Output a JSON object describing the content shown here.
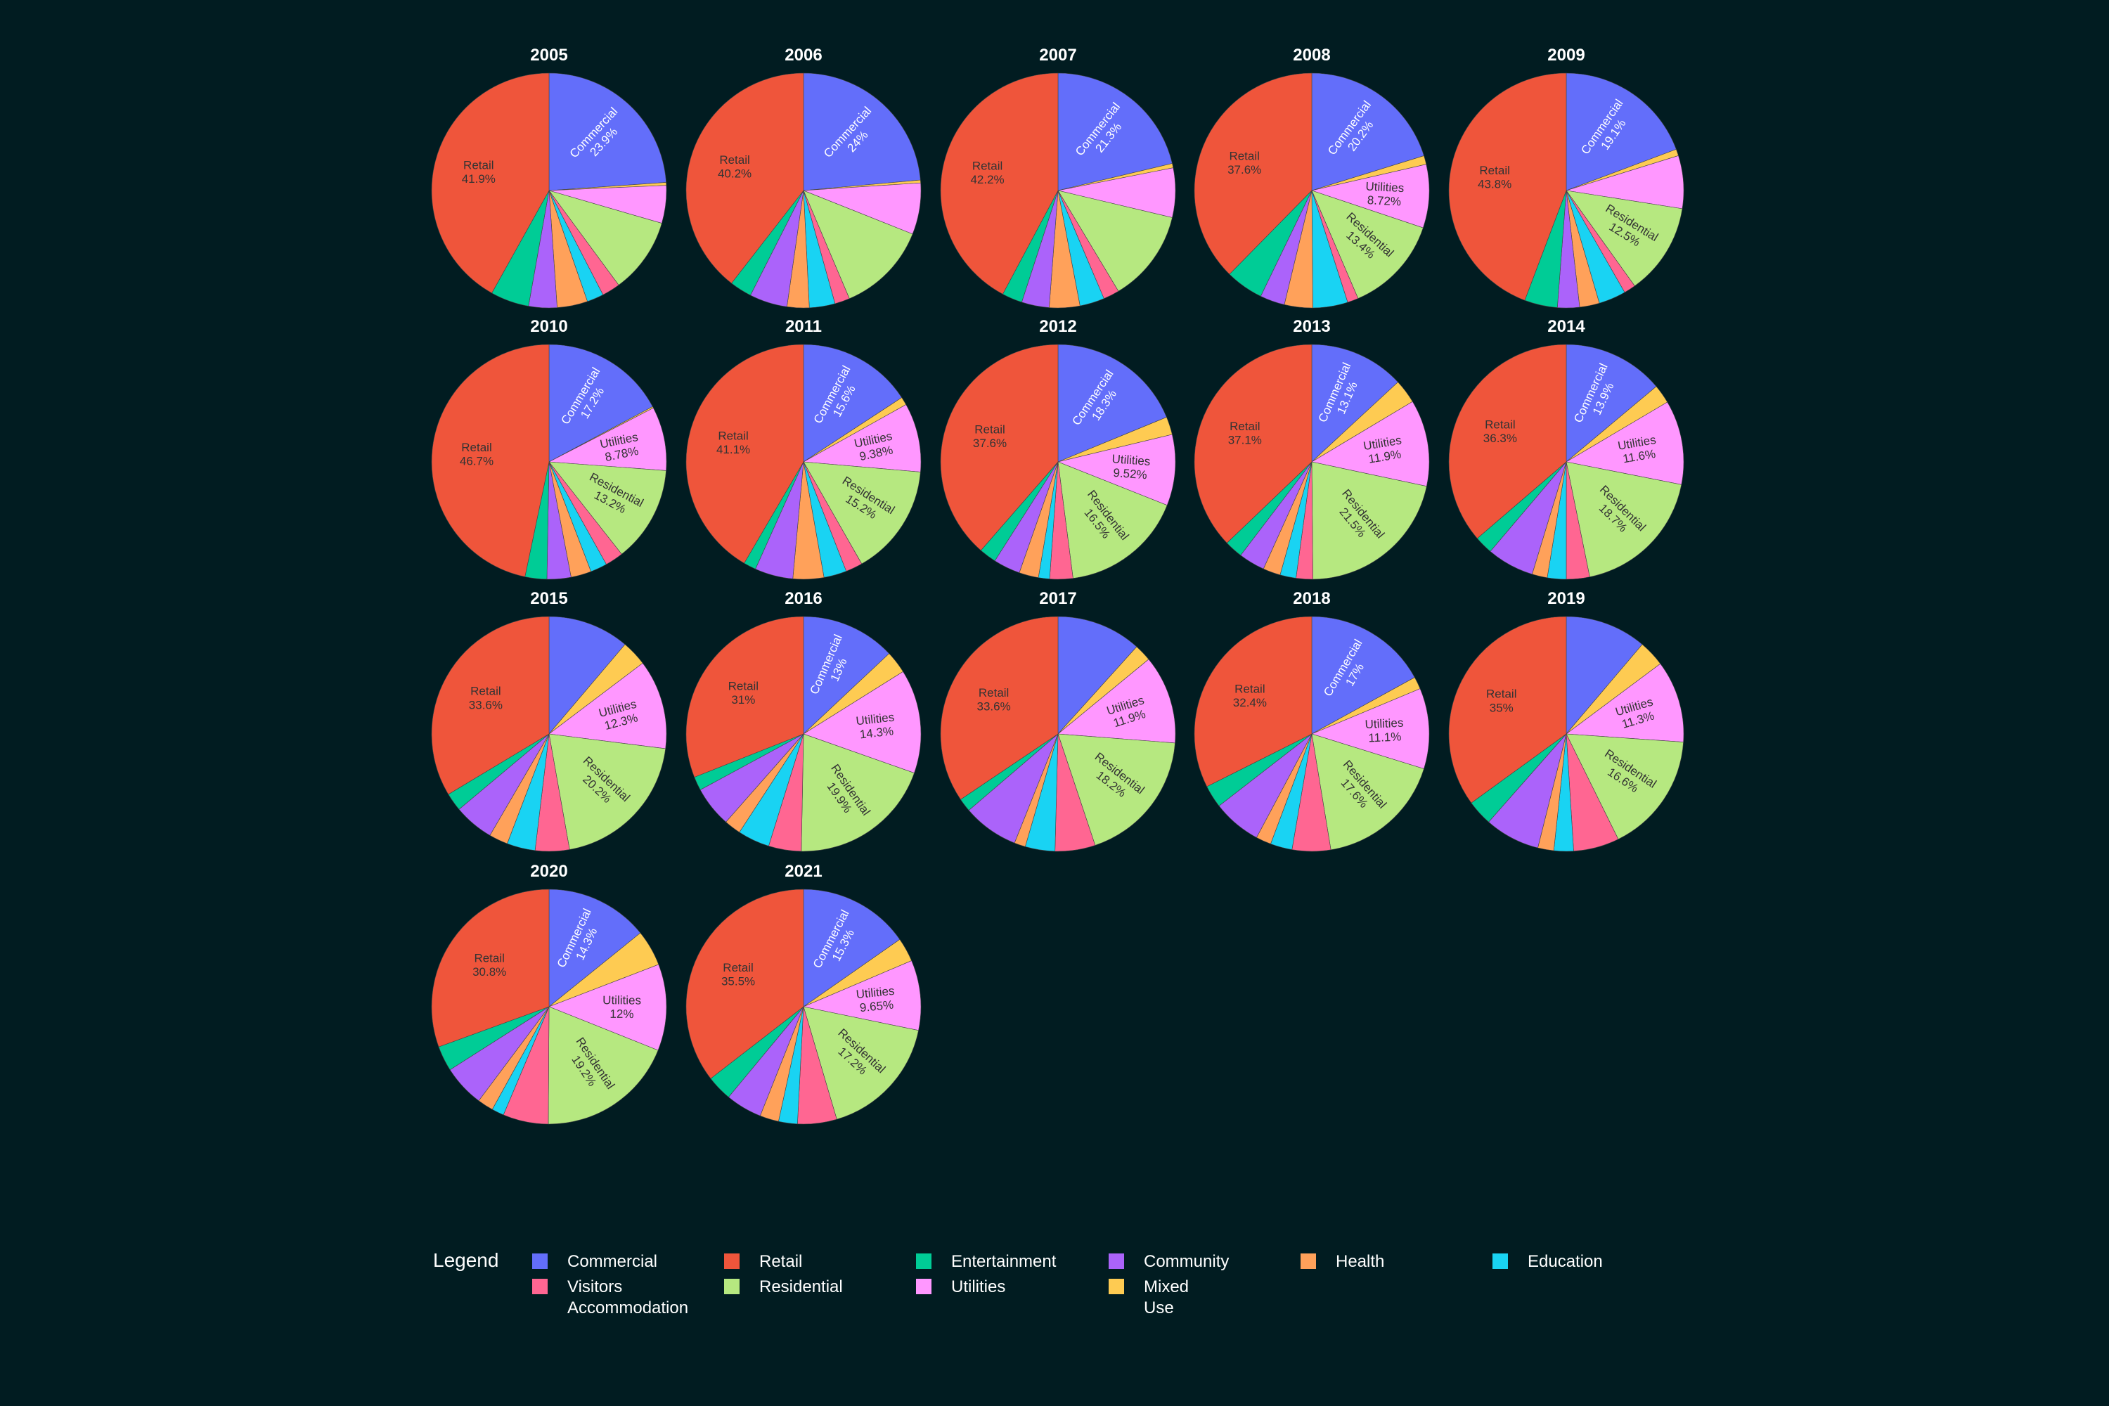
{
  "colors": {
    "background": "#011c21",
    "label_dark": "#333333",
    "label_light": "#ffffff"
  },
  "chart_data": {
    "type": "pie",
    "categories": [
      "Commercial",
      "Retail",
      "Entertainment",
      "Community",
      "Health",
      "Education",
      "Visitors Accommodation",
      "Residential",
      "Utilities",
      "Mixed Use"
    ],
    "category_colors": {
      "Commercial": "#636efa",
      "Retail": "#ef553b",
      "Entertainment": "#00cc96",
      "Community": "#ab63fa",
      "Health": "#ffa15a",
      "Education": "#19d3f3",
      "Visitors Accommodation": "#ff6692",
      "Residential": "#b6e880",
      "Utilities": "#ff97ff",
      "Mixed Use": "#fecb52"
    },
    "slice_order": [
      "Commercial",
      "Mixed Use",
      "Utilities",
      "Residential",
      "Visitors Accommodation",
      "Education",
      "Health",
      "Community",
      "Entertainment",
      "Retail"
    ],
    "pies": [
      {
        "title": "2005",
        "values": {
          "Commercial": 23.9,
          "Mixed Use": 0.4,
          "Utilities": 5.2,
          "Residential": 10.4,
          "Visitors Accommodation": 2.5,
          "Education": 2.3,
          "Health": 4.2,
          "Community": 3.9,
          "Entertainment": 5.3,
          "Retail": 41.9
        },
        "labels": [
          "Commercial",
          "Retail"
        ]
      },
      {
        "title": "2006",
        "values": {
          "Commercial": 24,
          "Mixed Use": 0.4,
          "Utilities": 7.2,
          "Residential": 12.8,
          "Visitors Accommodation": 2.1,
          "Education": 3.6,
          "Health": 3.1,
          "Community": 5.3,
          "Entertainment": 3.1,
          "Retail": 40.2
        },
        "labels": [
          "Commercial",
          "Retail"
        ]
      },
      {
        "title": "2007",
        "values": {
          "Commercial": 21.3,
          "Mixed Use": 0.6,
          "Utilities": 6.8,
          "Residential": 12.7,
          "Visitors Accommodation": 2.2,
          "Education": 3.4,
          "Health": 4.2,
          "Community": 3.8,
          "Entertainment": 2.8,
          "Retail": 42.2
        },
        "labels": [
          "Commercial",
          "Retail"
        ]
      },
      {
        "title": "2008",
        "values": {
          "Commercial": 20.2,
          "Mixed Use": 1.2,
          "Utilities": 8.72,
          "Residential": 13.4,
          "Visitors Accommodation": 1.5,
          "Education": 4.8,
          "Health": 3.9,
          "Community": 3.4,
          "Entertainment": 5.2,
          "Retail": 37.6
        },
        "labels": [
          "Commercial",
          "Utilities",
          "Residential",
          "Retail"
        ]
      },
      {
        "title": "2009",
        "values": {
          "Commercial": 19.1,
          "Mixed Use": 0.9,
          "Utilities": 7.2,
          "Residential": 12.5,
          "Visitors Accommodation": 1.6,
          "Education": 3.7,
          "Health": 2.7,
          "Community": 3.0,
          "Entertainment": 4.5,
          "Retail": 43.8
        },
        "labels": [
          "Commercial",
          "Residential",
          "Retail"
        ]
      },
      {
        "title": "2010",
        "values": {
          "Commercial": 17.2,
          "Mixed Use": 0.2,
          "Utilities": 8.78,
          "Residential": 13.2,
          "Visitors Accommodation": 2.5,
          "Education": 2.3,
          "Health": 2.8,
          "Community": 3.3,
          "Entertainment": 3.0,
          "Retail": 46.7
        },
        "labels": [
          "Commercial",
          "Utilities",
          "Residential",
          "Retail"
        ]
      },
      {
        "title": "2011",
        "values": {
          "Commercial": 15.6,
          "Mixed Use": 1.1,
          "Utilities": 9.38,
          "Residential": 15.2,
          "Visitors Accommodation": 2.3,
          "Education": 3.1,
          "Health": 4.2,
          "Community": 5.2,
          "Entertainment": 1.7,
          "Retail": 41.1
        },
        "labels": [
          "Commercial",
          "Utilities",
          "Residential",
          "Retail"
        ]
      },
      {
        "title": "2012",
        "values": {
          "Commercial": 18.3,
          "Mixed Use": 2.4,
          "Utilities": 9.52,
          "Residential": 16.5,
          "Visitors Accommodation": 3.1,
          "Education": 1.5,
          "Health": 2.6,
          "Community": 3.6,
          "Entertainment": 2.3,
          "Retail": 37.6
        },
        "labels": [
          "Commercial",
          "Utilities",
          "Residential",
          "Retail"
        ]
      },
      {
        "title": "2013",
        "values": {
          "Commercial": 13.1,
          "Mixed Use": 3.3,
          "Utilities": 11.9,
          "Residential": 21.5,
          "Visitors Accommodation": 2.3,
          "Education": 2.2,
          "Health": 2.4,
          "Community": 3.6,
          "Entertainment": 2.5,
          "Retail": 37.1
        },
        "labels": [
          "Commercial",
          "Utilities",
          "Residential",
          "Retail"
        ]
      },
      {
        "title": "2014",
        "values": {
          "Commercial": 13.9,
          "Mixed Use": 2.6,
          "Utilities": 11.6,
          "Residential": 18.7,
          "Visitors Accommodation": 3.2,
          "Education": 2.6,
          "Health": 2.1,
          "Community": 6.5,
          "Entertainment": 2.5,
          "Retail": 36.3
        },
        "labels": [
          "Commercial",
          "Utilities",
          "Residential",
          "Retail"
        ]
      },
      {
        "title": "2015",
        "values": {
          "Commercial": 11.2,
          "Mixed Use": 3.5,
          "Utilities": 12.3,
          "Residential": 20.2,
          "Visitors Accommodation": 4.7,
          "Education": 3.9,
          "Health": 2.6,
          "Community": 5.5,
          "Entertainment": 2.5,
          "Retail": 33.6
        },
        "labels": [
          "Utilities",
          "Residential",
          "Retail"
        ]
      },
      {
        "title": "2016",
        "values": {
          "Commercial": 13,
          "Mixed Use": 3.1,
          "Utilities": 14.3,
          "Residential": 19.9,
          "Visitors Accommodation": 4.5,
          "Education": 4.4,
          "Health": 2.3,
          "Community": 5.6,
          "Entertainment": 1.9,
          "Retail": 31
        },
        "labels": [
          "Commercial",
          "Utilities",
          "Residential",
          "Retail"
        ]
      },
      {
        "title": "2017",
        "values": {
          "Commercial": 11.4,
          "Mixed Use": 2.3,
          "Utilities": 11.9,
          "Residential": 18.2,
          "Visitors Accommodation": 5.4,
          "Education": 4.0,
          "Health": 1.5,
          "Community": 7.5,
          "Entertainment": 1.8,
          "Retail": 33.6
        },
        "labels": [
          "Utilities",
          "Residential",
          "Retail"
        ]
      },
      {
        "title": "2018",
        "values": {
          "Commercial": 17,
          "Mixed Use": 1.7,
          "Utilities": 11.1,
          "Residential": 17.6,
          "Visitors Accommodation": 5.3,
          "Education": 3.0,
          "Health": 2.1,
          "Community": 6.7,
          "Entertainment": 3.1,
          "Retail": 32.4
        },
        "labels": [
          "Commercial",
          "Utilities",
          "Residential",
          "Retail"
        ]
      },
      {
        "title": "2019",
        "values": {
          "Commercial": 11.2,
          "Mixed Use": 3.6,
          "Utilities": 11.3,
          "Residential": 16.6,
          "Visitors Accommodation": 6.3,
          "Education": 2.7,
          "Health": 2.2,
          "Community": 7.6,
          "Entertainment": 3.5,
          "Retail": 35
        },
        "labels": [
          "Utilities",
          "Residential",
          "Retail"
        ]
      },
      {
        "title": "2020",
        "values": {
          "Commercial": 14.3,
          "Mixed Use": 5.0,
          "Utilities": 12,
          "Residential": 19.2,
          "Visitors Accommodation": 6.3,
          "Education": 1.7,
          "Health": 2.2,
          "Community": 5.8,
          "Entertainment": 3.5,
          "Retail": 30.8
        },
        "labels": [
          "Commercial",
          "Utilities",
          "Residential",
          "Retail"
        ]
      },
      {
        "title": "2021",
        "values": {
          "Commercial": 15.3,
          "Mixed Use": 3.3,
          "Utilities": 9.65,
          "Residential": 17.2,
          "Visitors Accommodation": 5.4,
          "Education": 2.6,
          "Health": 2.6,
          "Community": 5.0,
          "Entertainment": 3.5,
          "Retail": 35.5
        },
        "labels": [
          "Commercial",
          "Utilities",
          "Residential",
          "Retail"
        ]
      }
    ],
    "legend": {
      "title": "Legend",
      "placement": "bottom",
      "items": [
        "Commercial",
        "Retail",
        "Entertainment",
        "Community",
        "Health",
        "Education",
        "Visitors Accommodation",
        "Residential",
        "Utilities",
        "Mixed Use"
      ]
    }
  }
}
